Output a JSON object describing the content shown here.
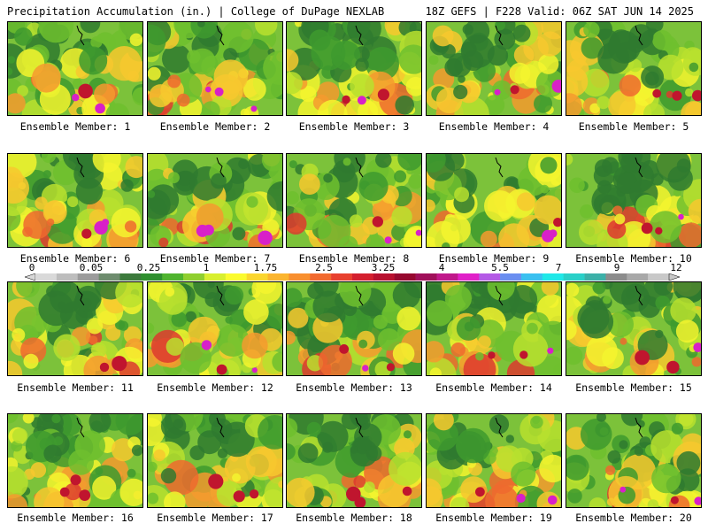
{
  "header": {
    "left": "Precipitation Accumulation (in.) | College of DuPage NEXLAB",
    "right": "18Z GEFS | F228 Valid: 06Z SAT JUN 14 2025"
  },
  "panels": [
    {
      "label": "Ensemble Member: 1"
    },
    {
      "label": "Ensemble Member: 2"
    },
    {
      "label": "Ensemble Member: 3"
    },
    {
      "label": "Ensemble Member: 4"
    },
    {
      "label": "Ensemble Member: 5"
    },
    {
      "label": "Ensemble Member: 6"
    },
    {
      "label": "Ensemble Member: 7"
    },
    {
      "label": "Ensemble Member: 8"
    },
    {
      "label": "Ensemble Member: 9"
    },
    {
      "label": "Ensemble Member: 10"
    },
    {
      "label": "Ensemble Member: 11"
    },
    {
      "label": "Ensemble Member: 12"
    },
    {
      "label": "Ensemble Member: 13"
    },
    {
      "label": "Ensemble Member: 14"
    },
    {
      "label": "Ensemble Member: 15"
    },
    {
      "label": "Ensemble Member: 16"
    },
    {
      "label": "Ensemble Member: 17"
    },
    {
      "label": "Ensemble Member: 18"
    },
    {
      "label": "Ensemble Member: 19"
    },
    {
      "label": "Ensemble Member: 20"
    }
  ],
  "colorbar": {
    "ticks": [
      "0",
      "0.05",
      "0.25",
      "1",
      "1.75",
      "2.5",
      "3.25",
      "4",
      "5.5",
      "7",
      "9",
      "12"
    ],
    "colors": [
      "#d9d9d9",
      "#bdbdbd",
      "#9c9c9c",
      "#6e8c6e",
      "#3c7a3c",
      "#2f8f2f",
      "#4fb42f",
      "#8fcf2f",
      "#d8ef2f",
      "#fbfb2f",
      "#fbd62f",
      "#fbb52f",
      "#f88f2f",
      "#f26a2f",
      "#e8402f",
      "#d41f2f",
      "#b8102f",
      "#96082f",
      "#a0105a",
      "#c0188a",
      "#e020c8",
      "#b45ae6",
      "#6a8ef0",
      "#3ac0f0",
      "#20e8e8",
      "#2ad0c8",
      "#3cb0a8",
      "#8c8c8c",
      "#a8a8a8",
      "#c8c8c8"
    ]
  }
}
